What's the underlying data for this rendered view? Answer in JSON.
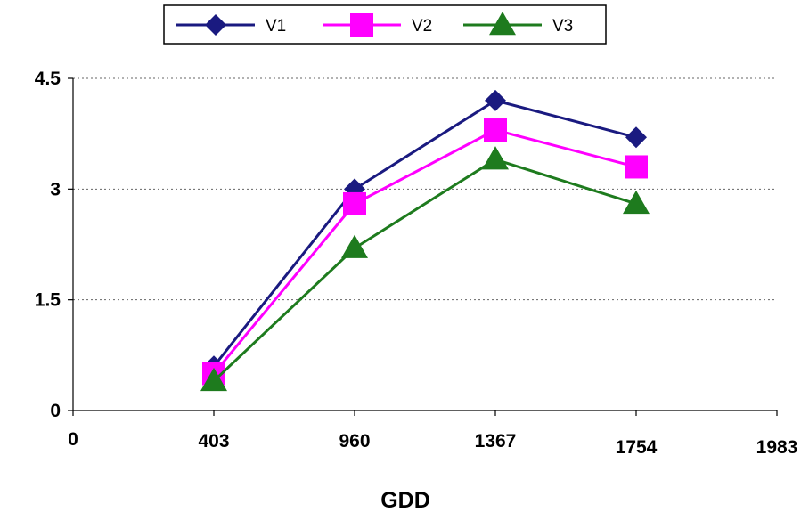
{
  "chart_data": {
    "type": "line",
    "categories": [
      "403",
      "960",
      "1367",
      "1754"
    ],
    "x_tick_labels": [
      "0",
      "403",
      "960",
      "1367",
      "1754",
      "1983"
    ],
    "y_ticks": [
      "0",
      "1.5",
      "3",
      "4.5"
    ],
    "ylim": [
      0,
      4.5
    ],
    "xlabel": "GDD",
    "ylabel": "",
    "title": "",
    "grid": "horizontal dotted",
    "legend_position": "top-center",
    "series": [
      {
        "name": "V1",
        "values": [
          0.6,
          3.0,
          4.2,
          3.7
        ],
        "color": "#1a1a80",
        "marker": "diamond"
      },
      {
        "name": "V2",
        "values": [
          0.5,
          2.8,
          3.8,
          3.3
        ],
        "color": "#ff00ff",
        "marker": "square"
      },
      {
        "name": "V3",
        "values": [
          0.4,
          2.2,
          3.4,
          2.8
        ],
        "color": "#1e7b1e",
        "marker": "triangle"
      }
    ]
  }
}
